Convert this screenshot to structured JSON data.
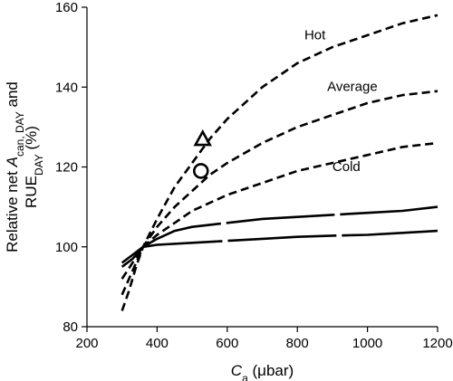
{
  "chart_data": {
    "type": "line",
    "xlabel": {
      "main": "C",
      "sub": "a",
      "unit": " (μbar)"
    },
    "ylabel": {
      "line1": {
        "pre": "Relative net ",
        "italic": "A",
        "sub": "can, DAY",
        "post": " and"
      },
      "line2": {
        "pre": "RUE",
        "sub": "DAY",
        "post": " (%)"
      }
    },
    "xlim": [
      200,
      1200
    ],
    "ylim": [
      80,
      160
    ],
    "xticks": [
      "200",
      "400",
      "600",
      "800",
      "1000",
      "1200"
    ],
    "yticks": [
      "80",
      "100",
      "120",
      "140",
      "160"
    ],
    "series": [
      {
        "name": "Hot",
        "style": "short-dash",
        "points": [
          [
            300,
            84
          ],
          [
            320,
            89
          ],
          [
            340,
            95
          ],
          [
            360,
            100
          ],
          [
            400,
            107
          ],
          [
            450,
            115
          ],
          [
            500,
            121
          ],
          [
            550,
            127
          ],
          [
            600,
            132
          ],
          [
            700,
            140
          ],
          [
            800,
            146
          ],
          [
            900,
            150
          ],
          [
            1000,
            153
          ],
          [
            1100,
            156
          ],
          [
            1200,
            158
          ]
        ]
      },
      {
        "name": "Average",
        "style": "short-dash",
        "points": [
          [
            300,
            88
          ],
          [
            320,
            92
          ],
          [
            340,
            96
          ],
          [
            360,
            100
          ],
          [
            400,
            105
          ],
          [
            450,
            110
          ],
          [
            500,
            114
          ],
          [
            550,
            118
          ],
          [
            600,
            121
          ],
          [
            700,
            126
          ],
          [
            800,
            130
          ],
          [
            900,
            133
          ],
          [
            1000,
            136
          ],
          [
            1100,
            138
          ],
          [
            1200,
            139
          ]
        ]
      },
      {
        "name": "Cold",
        "style": "short-dash",
        "points": [
          [
            300,
            92
          ],
          [
            330,
            96
          ],
          [
            360,
            100
          ],
          [
            400,
            103
          ],
          [
            450,
            106
          ],
          [
            500,
            109
          ],
          [
            600,
            113
          ],
          [
            700,
            116
          ],
          [
            800,
            119
          ],
          [
            900,
            121
          ],
          [
            1000,
            123
          ],
          [
            1100,
            125
          ],
          [
            1200,
            126
          ]
        ]
      },
      {
        "name": "",
        "style": "solid-long-dash",
        "points": [
          [
            300,
            96
          ],
          [
            330,
            98
          ],
          [
            360,
            100
          ],
          [
            400,
            102
          ],
          [
            450,
            104
          ],
          [
            500,
            105
          ],
          [
            600,
            106
          ],
          [
            700,
            107
          ],
          [
            800,
            107.5
          ],
          [
            900,
            108
          ],
          [
            1000,
            108.5
          ],
          [
            1100,
            109
          ],
          [
            1200,
            110
          ]
        ]
      },
      {
        "name": "",
        "style": "solid-long-dash",
        "points": [
          [
            300,
            95
          ],
          [
            330,
            97
          ],
          [
            360,
            100
          ],
          [
            400,
            100.5
          ],
          [
            500,
            101
          ],
          [
            600,
            101.5
          ],
          [
            700,
            102
          ],
          [
            800,
            102.5
          ],
          [
            900,
            102.8
          ],
          [
            1000,
            103
          ],
          [
            1100,
            103.5
          ],
          [
            1200,
            104
          ]
        ]
      }
    ],
    "annotations": [
      {
        "text": "Hot",
        "x": 820,
        "y": 152
      },
      {
        "text": "Average",
        "x": 885,
        "y": 139
      },
      {
        "text": "Cold",
        "x": 900,
        "y": 119
      }
    ],
    "markers": [
      {
        "shape": "triangle",
        "x": 530,
        "y": 127
      },
      {
        "shape": "circle",
        "x": 525,
        "y": 119
      }
    ]
  }
}
